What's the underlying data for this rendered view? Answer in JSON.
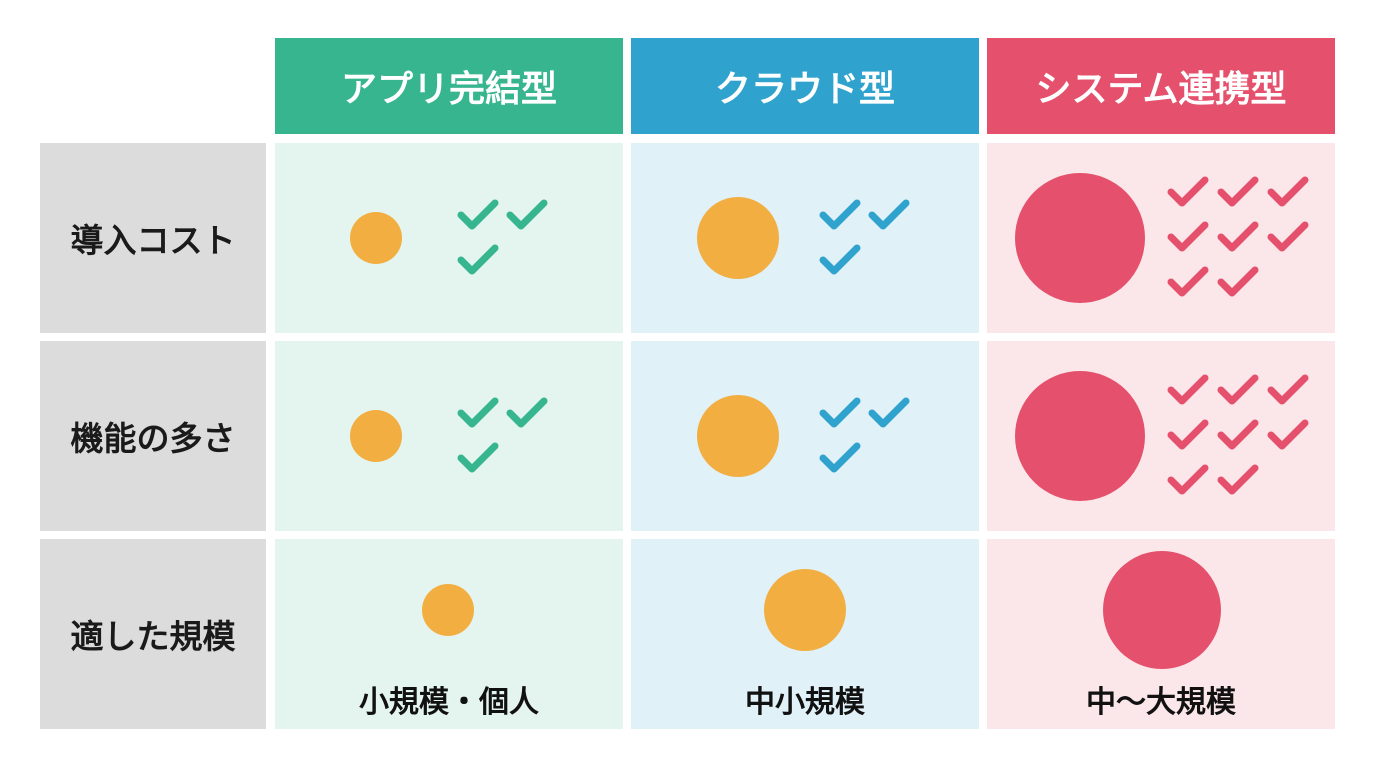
{
  "colors": {
    "app": {
      "header": "#36b58e",
      "cell": "#e3f5ee"
    },
    "cloud": {
      "header": "#2fa3cd",
      "cell": "#e0f1f8"
    },
    "system": {
      "header": "#e5506c",
      "cell": "#fbe6ea"
    },
    "orange_circle": "#f2ae41",
    "red_circle": "#e5506c",
    "row_label_bg": "#dcdcdc"
  },
  "columns": [
    {
      "key": "app",
      "title": "アプリ完結型",
      "check_color": "#36b58e",
      "circle_color": "#f2ae41"
    },
    {
      "key": "cloud",
      "title": "クラウド型",
      "check_color": "#2fa3cd",
      "circle_color": "#f2ae41"
    },
    {
      "key": "system",
      "title": "システム連携型",
      "check_color": "#e5506c",
      "circle_color": "#e5506c"
    }
  ],
  "rows": [
    {
      "label": "導入コスト",
      "circle_level": [
        "small",
        "medium",
        "large"
      ],
      "check_count": [
        3,
        3,
        8
      ]
    },
    {
      "label": "機能の多さ",
      "circle_level": [
        "small",
        "medium",
        "large"
      ],
      "check_count": [
        3,
        3,
        8
      ]
    },
    {
      "label": "適した規模",
      "circle_level": [
        "small",
        "medium",
        "large"
      ],
      "scale_labels": [
        "小規模・個人",
        "中小規模",
        "中〜大規模"
      ]
    }
  ],
  "icons": {
    "check": "check-icon",
    "circle": "circle-indicator"
  }
}
